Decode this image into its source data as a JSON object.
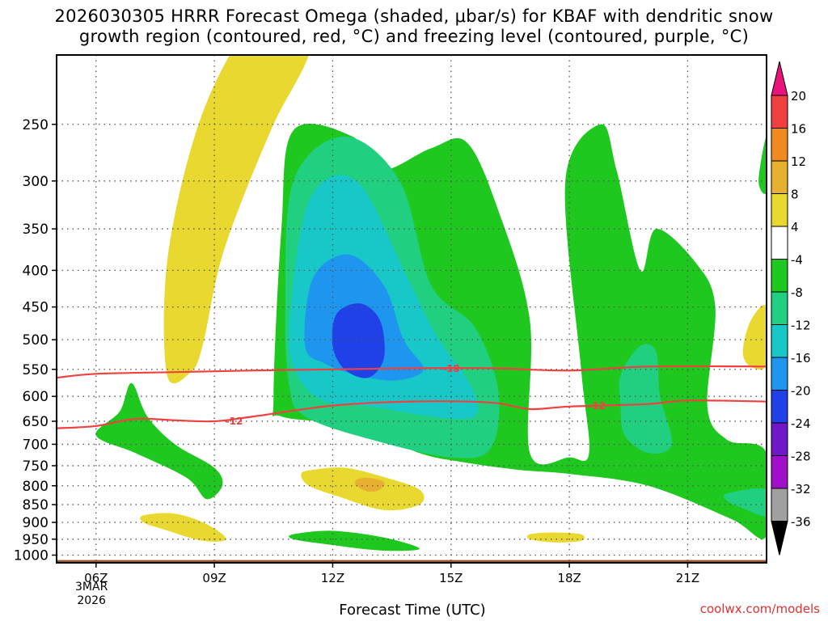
{
  "chart_data": {
    "type": "heatmap",
    "title_line1": "2026030305 HRRR Forecast Omega (shaded, μbar/s) for KBAF with dendritic snow",
    "title_line2": "growth region (contoured, red, °C) and freezing level (contoured, purple, °C)",
    "xlabel": "Forecast Time (UTC)",
    "x_ticks": [
      "06Z",
      "09Z",
      "12Z",
      "15Z",
      "18Z",
      "21Z"
    ],
    "x_tick_hours": [
      6,
      9,
      12,
      15,
      18,
      21
    ],
    "x_range_hours": [
      5,
      23
    ],
    "date_label": [
      "3MAR",
      "2026"
    ],
    "y_ticks": [
      250,
      300,
      350,
      400,
      450,
      500,
      550,
      600,
      650,
      700,
      750,
      800,
      850,
      900,
      950,
      1000
    ],
    "ylim_hpa": [
      200,
      1025
    ],
    "ground_hpa": 1016,
    "colorbar": {
      "labels": [
        20,
        16,
        12,
        8,
        4,
        -4,
        -8,
        -12,
        -16,
        -20,
        -24,
        -28,
        -32,
        -36
      ],
      "colors": [
        "#e8147a",
        "#f04040",
        "#f08a20",
        "#e8b030",
        "#e8d830",
        "#ffffff",
        "#1ec81e",
        "#20d080",
        "#18c8c8",
        "#1e96f0",
        "#2040e8",
        "#7018c8",
        "#a010c8",
        "#a0a0a0",
        "#000000"
      ]
    },
    "contours": [
      {
        "label": "-18",
        "color": "#f04040",
        "points": [
          [
            5,
            565
          ],
          [
            6,
            558
          ],
          [
            8,
            555
          ],
          [
            10,
            552
          ],
          [
            12,
            550
          ],
          [
            14,
            548
          ],
          [
            16,
            548
          ],
          [
            18,
            552
          ],
          [
            20,
            545
          ],
          [
            23,
            545
          ]
        ]
      },
      {
        "label": "-12",
        "color": "#f04040",
        "points": [
          [
            5,
            665
          ],
          [
            6,
            660
          ],
          [
            7,
            645
          ],
          [
            8,
            648
          ],
          [
            9,
            650
          ],
          [
            10,
            640
          ],
          [
            12,
            618
          ],
          [
            14,
            610
          ],
          [
            16,
            612
          ],
          [
            17,
            625
          ],
          [
            18,
            620
          ],
          [
            20,
            615
          ],
          [
            21,
            608
          ],
          [
            23,
            610
          ]
        ]
      }
    ],
    "shaded_regions": [
      {
        "band": "4 to 8",
        "color": "#e8d830",
        "points": [
          [
            7.8,
            560
          ],
          [
            7.8,
            390
          ],
          [
            8.5,
            260
          ],
          [
            9.5,
            195
          ],
          [
            11,
            150
          ],
          [
            11.5,
            190
          ],
          [
            10.5,
            250
          ],
          [
            9.6,
            330
          ],
          [
            9.1,
            400
          ],
          [
            8.7,
            510
          ],
          [
            8.4,
            555
          ]
        ]
      },
      {
        "band": "-4 to -8",
        "color": "#1ec81e",
        "points": [
          [
            10.5,
            600
          ],
          [
            10.7,
            350
          ],
          [
            11,
            255
          ],
          [
            12.5,
            260
          ],
          [
            13.2,
            290
          ],
          [
            14.5,
            270
          ],
          [
            15.4,
            265
          ],
          [
            16.2,
            330
          ],
          [
            17,
            470
          ],
          [
            17,
            720
          ],
          [
            18,
            730
          ],
          [
            18.5,
            720
          ],
          [
            18.3,
            550
          ],
          [
            17.9,
            300
          ],
          [
            18.8,
            250
          ],
          [
            19.2,
            290
          ],
          [
            19.8,
            400
          ],
          [
            20.2,
            350
          ],
          [
            21.2,
            390
          ],
          [
            21.7,
            450
          ],
          [
            21.5,
            620
          ],
          [
            22,
            690
          ],
          [
            23,
            720
          ],
          [
            23,
            940
          ],
          [
            22.1,
            890
          ],
          [
            20,
            800
          ],
          [
            18,
            770
          ],
          [
            16.7,
            760
          ],
          [
            15.2,
            740
          ],
          [
            14.2,
            720
          ],
          [
            12.5,
            660
          ],
          [
            10.7,
            640
          ]
        ]
      },
      {
        "band": "-8 to -12",
        "color": "#20d080",
        "points": [
          [
            10.8,
            450
          ],
          [
            11,
            300
          ],
          [
            12.3,
            260
          ],
          [
            13.7,
            300
          ],
          [
            14.5,
            420
          ],
          [
            15.6,
            480
          ],
          [
            16.2,
            590
          ],
          [
            16,
            710
          ],
          [
            15,
            730
          ],
          [
            13,
            690
          ],
          [
            11.3,
            640
          ],
          [
            10.9,
            580
          ]
        ]
      },
      {
        "band": "-12 to -16",
        "color": "#18c8c8",
        "points": [
          [
            10.9,
            480
          ],
          [
            11.4,
            320
          ],
          [
            12.6,
            300
          ],
          [
            13.9,
            410
          ],
          [
            14.6,
            490
          ],
          [
            15.5,
            580
          ],
          [
            15.6,
            640
          ],
          [
            14.5,
            640
          ],
          [
            13,
            620
          ],
          [
            11.8,
            610
          ],
          [
            11.1,
            560
          ]
        ]
      },
      {
        "band": "-16 to -20",
        "color": "#1e96f0",
        "points": [
          [
            11.3,
            510
          ],
          [
            11.5,
            410
          ],
          [
            12.4,
            380
          ],
          [
            13.3,
            420
          ],
          [
            13.8,
            500
          ],
          [
            14.3,
            550
          ],
          [
            13.6,
            570
          ],
          [
            12.6,
            560
          ],
          [
            11.8,
            540
          ]
        ]
      },
      {
        "band": "-20 to -24",
        "color": "#2040e8",
        "points": [
          [
            12,
            510
          ],
          [
            12.1,
            460
          ],
          [
            12.7,
            445
          ],
          [
            13.2,
            470
          ],
          [
            13.3,
            530
          ],
          [
            12.9,
            565
          ],
          [
            12.3,
            550
          ]
        ]
      },
      {
        "band": "4 to 8",
        "color": "#e8d830",
        "points": [
          [
            11.2,
            770
          ],
          [
            11.5,
            760
          ],
          [
            12.3,
            755
          ],
          [
            13.2,
            775
          ],
          [
            14.2,
            810
          ],
          [
            14.2,
            850
          ],
          [
            13.3,
            865
          ],
          [
            12.2,
            830
          ],
          [
            11.4,
            800
          ]
        ]
      },
      {
        "band": "8 to 12",
        "color": "#e8b030",
        "points": [
          [
            12.6,
            785
          ],
          [
            12.9,
            780
          ],
          [
            13.3,
            790
          ],
          [
            13.2,
            810
          ],
          [
            12.9,
            815
          ],
          [
            12.6,
            800
          ]
        ]
      },
      {
        "band": "-4 to -8",
        "color": "#1ec81e",
        "points": [
          [
            6,
            680
          ],
          [
            6.6,
            630
          ],
          [
            6.9,
            575
          ],
          [
            7.3,
            640
          ],
          [
            8,
            700
          ],
          [
            9,
            755
          ],
          [
            9.2,
            800
          ],
          [
            8.8,
            835
          ],
          [
            8.3,
            780
          ],
          [
            7,
            720
          ]
        ]
      },
      {
        "band": "4 to 8",
        "color": "#e8d830",
        "points": [
          [
            7.2,
            880
          ],
          [
            8,
            875
          ],
          [
            8.8,
            905
          ],
          [
            9.3,
            950
          ],
          [
            8.7,
            955
          ],
          [
            7.7,
            920
          ],
          [
            7.2,
            900
          ]
        ]
      },
      {
        "band": "-4 to -8",
        "color": "#1ec81e",
        "points": [
          [
            11,
            935
          ],
          [
            12,
            925
          ],
          [
            13.3,
            945
          ],
          [
            14.2,
            980
          ],
          [
            13.2,
            985
          ],
          [
            11.8,
            965
          ],
          [
            11,
            950
          ]
        ]
      },
      {
        "band": "4 to 8",
        "color": "#e8d830",
        "points": [
          [
            17,
            935
          ],
          [
            17.6,
            930
          ],
          [
            18.3,
            935
          ],
          [
            18.3,
            955
          ],
          [
            17.6,
            960
          ],
          [
            17,
            950
          ]
        ]
      },
      {
        "band": "-8 to -12",
        "color": "#20d080",
        "points": [
          [
            19.3,
            560
          ],
          [
            19.8,
            510
          ],
          [
            20.2,
            520
          ],
          [
            20.3,
            600
          ],
          [
            20.6,
            700
          ],
          [
            20,
            720
          ],
          [
            19.4,
            680
          ],
          [
            19.3,
            620
          ]
        ]
      },
      {
        "band": "-8 to -12",
        "color": "#20d080",
        "points": [
          [
            22,
            820
          ],
          [
            23,
            810
          ],
          [
            23,
            880
          ],
          [
            22.4,
            860
          ],
          [
            22,
            840
          ]
        ]
      },
      {
        "band": "4 to 8",
        "color": "#e8d830",
        "points": [
          [
            22.4,
            520
          ],
          [
            22.6,
            470
          ],
          [
            23,
            450
          ],
          [
            23,
            540
          ],
          [
            22.6,
            545
          ]
        ]
      },
      {
        "band": "-4 to -8",
        "color": "#1ec81e",
        "points": [
          [
            22.8,
            300
          ],
          [
            23,
            260
          ],
          [
            23,
            310
          ]
        ]
      }
    ]
  },
  "credit": "coolwx.com/models"
}
